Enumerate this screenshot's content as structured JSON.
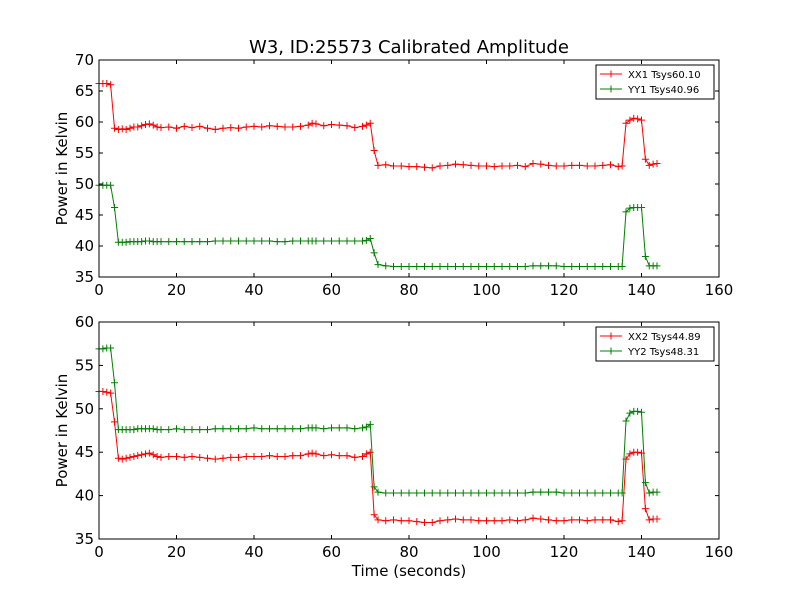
{
  "chart_data": [
    {
      "type": "line",
      "title": "W3, ID:25573 Calibrated Amplitude",
      "xlabel": "",
      "ylabel": "Power in Kelvin",
      "xlim": [
        0,
        160
      ],
      "ylim": [
        35,
        70
      ],
      "xticks": [
        0,
        20,
        40,
        60,
        80,
        100,
        120,
        140,
        160
      ],
      "yticks": [
        35,
        40,
        45,
        50,
        55,
        60,
        65,
        70
      ],
      "legend_position": "top-right",
      "grid": false,
      "series": [
        {
          "name": "XX1 Tsys60.10",
          "color": "#ff0000",
          "x": [
            0,
            1,
            2,
            3,
            4,
            5,
            6,
            7,
            8,
            9,
            10,
            11,
            12,
            13,
            14,
            15,
            16,
            18,
            20,
            22,
            24,
            26,
            28,
            30,
            32,
            34,
            36,
            38,
            40,
            42,
            44,
            46,
            48,
            50,
            52,
            54,
            55,
            56,
            58,
            60,
            62,
            64,
            66,
            68,
            69,
            70,
            71,
            72,
            74,
            76,
            78,
            80,
            82,
            84,
            86,
            88,
            90,
            92,
            94,
            96,
            98,
            100,
            102,
            104,
            106,
            108,
            110,
            112,
            114,
            116,
            118,
            120,
            122,
            124,
            126,
            128,
            130,
            132,
            134,
            135,
            136,
            137,
            138,
            139,
            140,
            141,
            142,
            143,
            144
          ],
          "y": [
            66.2,
            66.2,
            66.2,
            66.0,
            59.0,
            58.8,
            58.9,
            58.8,
            59.0,
            59.2,
            59.2,
            59.4,
            59.6,
            59.7,
            59.5,
            59.2,
            59.1,
            59.2,
            59.0,
            59.3,
            59.1,
            59.3,
            59.0,
            58.8,
            59.0,
            59.1,
            59.0,
            59.2,
            59.3,
            59.2,
            59.4,
            59.3,
            59.2,
            59.2,
            59.3,
            59.5,
            59.8,
            59.7,
            59.4,
            59.6,
            59.5,
            59.4,
            59.1,
            59.3,
            59.5,
            59.8,
            55.4,
            53.0,
            53.1,
            52.9,
            52.9,
            52.8,
            52.8,
            52.7,
            52.6,
            52.9,
            53.0,
            53.2,
            53.1,
            53.0,
            52.9,
            52.9,
            52.8,
            52.9,
            52.9,
            53.0,
            52.8,
            53.3,
            53.2,
            53.0,
            52.9,
            52.9,
            53.0,
            53.0,
            52.9,
            52.9,
            53.0,
            53.1,
            52.8,
            52.9,
            59.8,
            60.3,
            60.6,
            60.5,
            60.3,
            54.0,
            53.0,
            53.2,
            53.3
          ]
        },
        {
          "name": "YY1 Tsys40.96",
          "color": "#008000",
          "x": [
            0,
            1,
            2,
            3,
            4,
            5,
            6,
            7,
            8,
            9,
            10,
            11,
            12,
            13,
            14,
            15,
            16,
            18,
            20,
            22,
            24,
            26,
            28,
            30,
            32,
            34,
            36,
            38,
            40,
            42,
            44,
            46,
            48,
            50,
            52,
            54,
            55,
            56,
            58,
            60,
            62,
            64,
            66,
            68,
            69,
            70,
            71,
            72,
            74,
            76,
            78,
            80,
            82,
            84,
            86,
            88,
            90,
            92,
            94,
            96,
            98,
            100,
            102,
            104,
            106,
            108,
            110,
            112,
            114,
            116,
            118,
            120,
            122,
            124,
            126,
            128,
            130,
            132,
            134,
            135,
            136,
            137,
            138,
            139,
            140,
            141,
            142,
            143,
            144
          ],
          "y": [
            49.8,
            49.8,
            49.8,
            49.8,
            46.2,
            40.6,
            40.6,
            40.6,
            40.7,
            40.7,
            40.7,
            40.7,
            40.8,
            40.8,
            40.7,
            40.7,
            40.7,
            40.7,
            40.7,
            40.7,
            40.7,
            40.7,
            40.7,
            40.8,
            40.8,
            40.8,
            40.8,
            40.8,
            40.8,
            40.8,
            40.8,
            40.7,
            40.7,
            40.8,
            40.8,
            40.8,
            40.8,
            40.8,
            40.8,
            40.8,
            40.8,
            40.8,
            40.8,
            40.8,
            40.9,
            41.2,
            38.9,
            37.0,
            36.8,
            36.7,
            36.7,
            36.7,
            36.7,
            36.7,
            36.7,
            36.7,
            36.7,
            36.7,
            36.7,
            36.7,
            36.7,
            36.7,
            36.7,
            36.7,
            36.7,
            36.7,
            36.7,
            36.8,
            36.8,
            36.8,
            36.8,
            36.7,
            36.7,
            36.7,
            36.7,
            36.7,
            36.7,
            36.7,
            36.7,
            36.7,
            45.5,
            46.1,
            46.2,
            46.2,
            46.2,
            38.3,
            36.8,
            36.8,
            36.8
          ]
        }
      ]
    },
    {
      "type": "line",
      "title": "",
      "xlabel": "Time (seconds)",
      "ylabel": "Power in Kelvin",
      "xlim": [
        0,
        160
      ],
      "ylim": [
        35,
        60
      ],
      "xticks": [
        0,
        20,
        40,
        60,
        80,
        100,
        120,
        140,
        160
      ],
      "yticks": [
        35,
        40,
        45,
        50,
        55,
        60
      ],
      "legend_position": "top-right",
      "grid": false,
      "series": [
        {
          "name": "XX2 Tsys44.89",
          "color": "#ff0000",
          "x": [
            0,
            1,
            2,
            3,
            4,
            5,
            6,
            7,
            8,
            9,
            10,
            11,
            12,
            13,
            14,
            15,
            16,
            18,
            20,
            22,
            24,
            26,
            28,
            30,
            32,
            34,
            36,
            38,
            40,
            42,
            44,
            46,
            48,
            50,
            52,
            54,
            55,
            56,
            58,
            60,
            62,
            64,
            66,
            68,
            69,
            70,
            71,
            72,
            74,
            76,
            78,
            80,
            82,
            84,
            86,
            88,
            90,
            92,
            94,
            96,
            98,
            100,
            102,
            104,
            106,
            108,
            110,
            112,
            114,
            116,
            118,
            120,
            122,
            124,
            126,
            128,
            130,
            132,
            134,
            135,
            136,
            137,
            138,
            139,
            140,
            141,
            142,
            143,
            144
          ],
          "y": [
            52.0,
            52.0,
            51.9,
            51.8,
            48.5,
            44.3,
            44.2,
            44.3,
            44.4,
            44.5,
            44.6,
            44.7,
            44.8,
            44.9,
            44.7,
            44.5,
            44.4,
            44.5,
            44.5,
            44.4,
            44.5,
            44.4,
            44.3,
            44.2,
            44.3,
            44.4,
            44.4,
            44.5,
            44.5,
            44.5,
            44.6,
            44.5,
            44.5,
            44.6,
            44.6,
            44.8,
            44.9,
            44.8,
            44.6,
            44.7,
            44.6,
            44.6,
            44.4,
            44.5,
            44.8,
            45.0,
            37.8,
            37.2,
            37.1,
            37.2,
            37.1,
            37.1,
            37.0,
            36.9,
            36.9,
            37.1,
            37.2,
            37.3,
            37.2,
            37.2,
            37.1,
            37.1,
            37.1,
            37.1,
            37.2,
            37.1,
            37.2,
            37.4,
            37.3,
            37.2,
            37.1,
            37.1,
            37.2,
            37.2,
            37.1,
            37.2,
            37.2,
            37.2,
            37.0,
            37.1,
            44.2,
            44.8,
            45.0,
            45.0,
            44.9,
            38.5,
            37.2,
            37.3,
            37.3
          ]
        },
        {
          "name": "YY2 Tsys48.31",
          "color": "#008000",
          "x": [
            0,
            1,
            2,
            3,
            4,
            5,
            6,
            7,
            8,
            9,
            10,
            11,
            12,
            13,
            14,
            15,
            16,
            18,
            20,
            22,
            24,
            26,
            28,
            30,
            32,
            34,
            36,
            38,
            40,
            42,
            44,
            46,
            48,
            50,
            52,
            54,
            55,
            56,
            58,
            60,
            62,
            64,
            66,
            68,
            69,
            70,
            71,
            72,
            74,
            76,
            78,
            80,
            82,
            84,
            86,
            88,
            90,
            92,
            94,
            96,
            98,
            100,
            102,
            104,
            106,
            108,
            110,
            112,
            114,
            116,
            118,
            120,
            122,
            124,
            126,
            128,
            130,
            132,
            134,
            135,
            136,
            137,
            138,
            139,
            140,
            141,
            142,
            143,
            144
          ],
          "y": [
            56.9,
            56.9,
            57.0,
            57.0,
            53.0,
            47.6,
            47.6,
            47.6,
            47.6,
            47.6,
            47.7,
            47.7,
            47.7,
            47.7,
            47.7,
            47.6,
            47.6,
            47.6,
            47.7,
            47.6,
            47.6,
            47.6,
            47.6,
            47.7,
            47.7,
            47.7,
            47.7,
            47.7,
            47.8,
            47.7,
            47.7,
            47.7,
            47.7,
            47.7,
            47.7,
            47.8,
            47.8,
            47.8,
            47.7,
            47.8,
            47.8,
            47.8,
            47.7,
            47.8,
            47.9,
            48.2,
            41.0,
            40.4,
            40.3,
            40.3,
            40.3,
            40.3,
            40.3,
            40.3,
            40.3,
            40.3,
            40.3,
            40.3,
            40.3,
            40.3,
            40.3,
            40.3,
            40.3,
            40.3,
            40.3,
            40.3,
            40.3,
            40.4,
            40.4,
            40.4,
            40.4,
            40.3,
            40.3,
            40.3,
            40.3,
            40.3,
            40.3,
            40.3,
            40.3,
            40.3,
            48.6,
            49.5,
            49.7,
            49.7,
            49.6,
            41.5,
            40.3,
            40.4,
            40.4
          ]
        }
      ]
    }
  ]
}
